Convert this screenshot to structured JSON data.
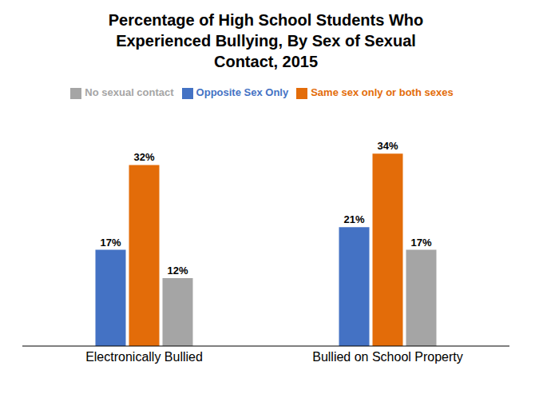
{
  "chart_data": {
    "type": "bar",
    "title": "Percentage of High School Students Who Experienced Bullying, By Sex of Sexual Contact, 2015",
    "categories": [
      "Electronically Bullied",
      "Bullied on School Property"
    ],
    "series": [
      {
        "name": "Opposite Sex Only",
        "color": "#4472C4",
        "values": [
          17,
          21
        ],
        "value_labels": [
          "17%",
          "21%"
        ]
      },
      {
        "name": "Same sex only or both sexes",
        "color": "#E36C09",
        "values": [
          32,
          34
        ],
        "value_labels": [
          "32%",
          "34%"
        ]
      },
      {
        "name": "No sexual contact",
        "color": "#A5A5A5",
        "values": [
          12,
          17
        ],
        "value_labels": [
          "12%",
          "17%"
        ]
      }
    ],
    "ylim": [
      0,
      42
    ],
    "grid": false,
    "legend": "top",
    "data_labels": true,
    "tick_labels": "x"
  }
}
